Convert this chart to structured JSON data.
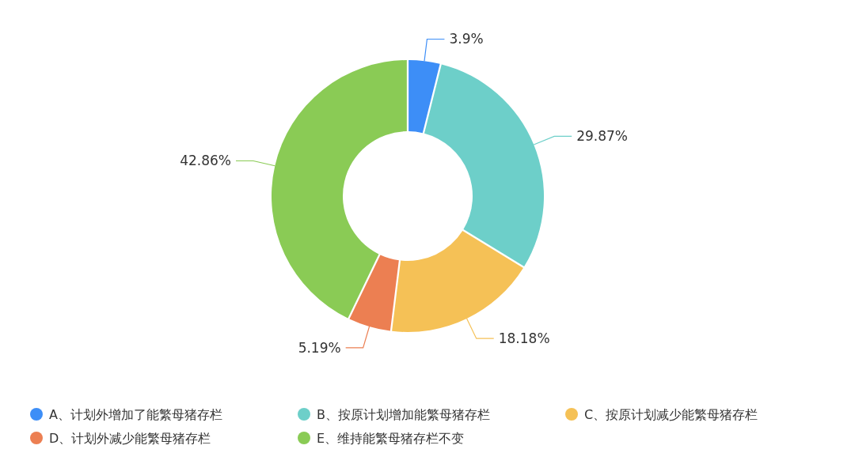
{
  "chart_data": {
    "type": "donut",
    "categories": [
      "A、计划外增加了能繁母猪存栏",
      "B、按原计划增加能繁母猪存栏",
      "C、按原计划减少能繁母猪存栏",
      "D、计划外减少能繁母猪存栏",
      "E、维持能繁母猪存栏不变"
    ],
    "values": [
      3.9,
      29.87,
      18.18,
      5.19,
      42.86
    ],
    "value_labels": [
      "3.9%",
      "29.87%",
      "18.18%",
      "5.19%",
      "42.86%"
    ],
    "colors": [
      "#3d8ef7",
      "#6dcfc9",
      "#f5c156",
      "#ec7f52",
      "#8acb55"
    ],
    "legend": "bottom"
  }
}
